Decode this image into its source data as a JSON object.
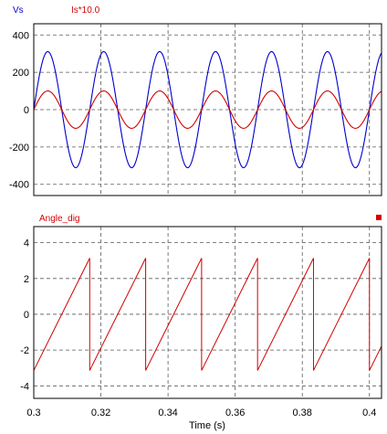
{
  "xlabel": "Time (s)",
  "colors": {
    "Vs": "#0000cc",
    "Is": "#d40000",
    "Angle": "#d40000",
    "grid": "#5a5a5a"
  },
  "chart_data": [
    {
      "type": "line",
      "title": "",
      "xlabel": "",
      "ylabel": "",
      "xlim": [
        0.3,
        0.4036
      ],
      "ylim": [
        -460,
        460
      ],
      "yticks": [
        -400,
        -200,
        0,
        200,
        400
      ],
      "grid": true,
      "legend_position": "top-left",
      "series": [
        {
          "name": "Vs",
          "amplitude": 311,
          "frequency_hz": 60,
          "phase_deg": 0,
          "color": "#0000cc"
        },
        {
          "name": "Is*10.0",
          "amplitude": 100,
          "frequency_hz": 60,
          "phase_deg": 0,
          "color": "#d40000"
        }
      ]
    },
    {
      "type": "line",
      "title": "",
      "xlabel": "Time (s)",
      "ylabel": "",
      "xlim": [
        0.3,
        0.4036
      ],
      "xticks": [
        0.3,
        0.32,
        0.34,
        0.36,
        0.38,
        0.4
      ],
      "xtick_labels": [
        "0.3",
        "0.32",
        "0.34",
        "0.36",
        "0.38",
        "0.4"
      ],
      "ylim": [
        -4.7,
        4.9
      ],
      "yticks": [
        -4,
        -2,
        0,
        2,
        4
      ],
      "grid": true,
      "legend_position": "top-left",
      "series": [
        {
          "name": "Angle_dig",
          "waveform": "sawtooth",
          "min": -3.14,
          "max": 3.14,
          "period_s": 0.016667,
          "color": "#d40000"
        }
      ]
    }
  ]
}
